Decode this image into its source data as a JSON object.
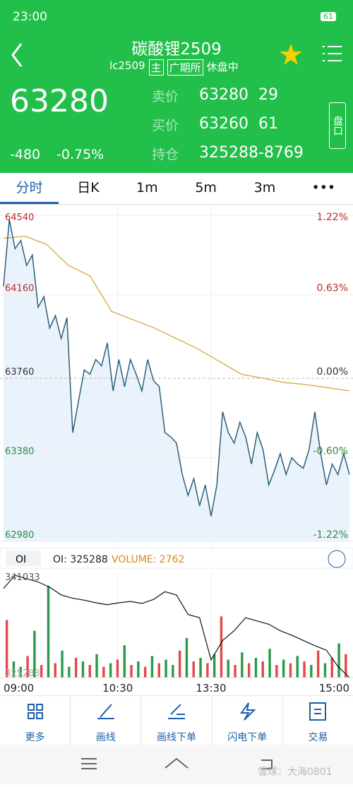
{
  "status": {
    "time": "23:00",
    "battery": "61"
  },
  "header": {
    "title": "碳酸锂2509",
    "code": "lc2509",
    "tags": [
      "主",
      "广期所"
    ],
    "state": "休盘中"
  },
  "quote": {
    "price": 63280,
    "change": -480,
    "change_pct": "-0.75%",
    "rows": [
      {
        "label": "卖价",
        "value": 63280,
        "qty": 29
      },
      {
        "label": "买价",
        "value": 63260,
        "qty": 61
      },
      {
        "label": "持仓",
        "value": 325288,
        "qty": -8769
      }
    ],
    "side_button": "盘口"
  },
  "tabs": [
    "分时",
    "日K",
    "1m",
    "5m",
    "3m",
    "•••"
  ],
  "intraday": {
    "ylim": [
      62980,
      64540
    ],
    "yticks": [
      {
        "value": 64540,
        "color": "#c0272d"
      },
      {
        "value": 64160,
        "color": "#c0272d"
      },
      {
        "value": 63760,
        "color": "#333333"
      },
      {
        "value": 63380,
        "color": "#2a8a3a"
      },
      {
        "value": 62980,
        "color": "#2a8a3a"
      }
    ],
    "right_labels": [
      "1.22%",
      "0.63%",
      "0.00%",
      "-0.60%",
      "-1.22%"
    ],
    "times": [
      "09:00",
      "10:30",
      "13:30",
      "15:00"
    ],
    "price": [
      64200,
      64520,
      64380,
      64420,
      64300,
      64350,
      64100,
      64150,
      64000,
      64060,
      63950,
      64050,
      63500,
      63650,
      63800,
      63780,
      63850,
      63820,
      63930,
      63700,
      63850,
      63720,
      63850,
      63780,
      63700,
      63850,
      63750,
      63720,
      63500,
      63480,
      63450,
      63300,
      63200,
      63280,
      63150,
      63250,
      63100,
      63250,
      63600,
      63500,
      63450,
      63550,
      63480,
      63350,
      63500,
      63420,
      63250,
      63320,
      63400,
      63300,
      63380,
      63350,
      63330,
      63420,
      63600,
      63400,
      63250,
      63350,
      63300,
      63400,
      63300
    ],
    "avg": [
      64430,
      64440,
      64400,
      64300,
      64250,
      64080,
      64040,
      64000,
      63950,
      63900,
      63840,
      63780,
      63760,
      63740,
      63730,
      63715,
      63700
    ],
    "avg_color": "#d9a443",
    "price_color": "#2b5f7a"
  },
  "oi_panel": {
    "oi_label": "OI: 325288",
    "volume_label": "VOLUME: 2762",
    "top_label": "341033",
    "bottom_label": "325288",
    "oi": [
      339000,
      341033,
      340500,
      340000,
      339200,
      338000,
      337500,
      337200,
      336800,
      336500,
      336800,
      337000,
      336700,
      337300,
      338500,
      338000,
      335000,
      334500,
      328000,
      331000,
      332500,
      334500,
      334000,
      333500,
      332500,
      331800,
      331000,
      330200,
      329500,
      327000,
      325288
    ],
    "volume": [
      3200,
      900,
      600,
      1200,
      2600,
      700,
      5100,
      800,
      1500,
      600,
      1100,
      900,
      700,
      1300,
      600,
      800,
      1000,
      1800,
      700,
      900,
      600,
      1200,
      800,
      1000,
      700,
      1500,
      2200,
      900,
      1100,
      800,
      1300,
      3400,
      1000,
      700,
      1400,
      800,
      1100,
      900,
      1600,
      700,
      1000,
      800,
      1200,
      900,
      700,
      1500,
      800,
      1100,
      1900,
      1300
    ],
    "volume_colors": [
      "#e04a4a",
      "#2a9a4a",
      "#2a9a4a",
      "#e04a4a",
      "#2a9a4a",
      "#e04a4a",
      "#2a9a4a",
      "#e04a4a",
      "#2a9a4a",
      "#2a9a4a",
      "#e04a4a",
      "#2a9a4a",
      "#e04a4a",
      "#2a9a4a",
      "#e04a4a",
      "#2a9a4a",
      "#e04a4a",
      "#2a9a4a",
      "#e04a4a",
      "#2a9a4a",
      "#e04a4a",
      "#2a9a4a",
      "#e04a4a",
      "#2a9a4a",
      "#2a9a4a",
      "#e04a4a",
      "#2a9a4a",
      "#e04a4a",
      "#2a9a4a",
      "#e04a4a",
      "#2a9a4a",
      "#e04a4a",
      "#2a9a4a",
      "#e04a4a",
      "#2a9a4a",
      "#e04a4a",
      "#2a9a4a",
      "#e04a4a",
      "#2a9a4a",
      "#e04a4a",
      "#2a9a4a",
      "#e04a4a",
      "#2a9a4a",
      "#e04a4a",
      "#2a9a4a",
      "#e04a4a",
      "#2a9a4a",
      "#e04a4a",
      "#2a9a4a",
      "#e04a4a"
    ]
  },
  "bottom_nav": [
    "更多",
    "画线",
    "画线下单",
    "闪电下单",
    "交易"
  ],
  "watermark": "雪球：大海0801"
}
